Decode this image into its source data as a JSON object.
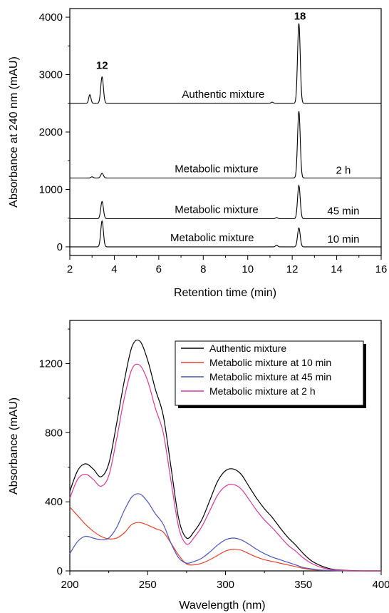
{
  "chart_data": [
    {
      "type": "line",
      "subtype": "stacked chromatogram",
      "xlabel": "Retention time (min)",
      "ylabel": "Absorbance at 240 nm (mAU)",
      "xlim": [
        2,
        16
      ],
      "ylim": [
        -150,
        4150
      ],
      "xticks": [
        2,
        4,
        6,
        8,
        10,
        12,
        14,
        16
      ],
      "yticks": [
        0,
        1000,
        2000,
        3000,
        4000
      ],
      "peak_labels": [
        {
          "text": "12",
          "x": 3.45,
          "y": 3100
        },
        {
          "text": "18",
          "x": 12.35,
          "y": 3960
        }
      ],
      "series": [
        {
          "name": "Authentic mixture",
          "time_label": "",
          "baseline": 2500,
          "label_x": 8.9,
          "peaks": [
            {
              "x": 2.9,
              "h": 150,
              "w": 0.05
            },
            {
              "x": 3.45,
              "h": 460,
              "w": 0.06
            },
            {
              "x": 11.1,
              "h": 20,
              "w": 0.05
            },
            {
              "x": 12.3,
              "h": 1390,
              "w": 0.06
            }
          ]
        },
        {
          "name": "Metabolic mixture",
          "time_label": "2 h",
          "baseline": 1200,
          "label_x": 8.6,
          "peaks": [
            {
              "x": 3.0,
              "h": 20,
              "w": 0.05
            },
            {
              "x": 3.45,
              "h": 80,
              "w": 0.06
            },
            {
              "x": 12.3,
              "h": 1160,
              "w": 0.06
            }
          ]
        },
        {
          "name": "Metabolic mixture",
          "time_label": "45 min",
          "baseline": 490,
          "label_x": 8.6,
          "peaks": [
            {
              "x": 3.45,
              "h": 300,
              "w": 0.06
            },
            {
              "x": 11.3,
              "h": 20,
              "w": 0.05
            },
            {
              "x": 12.3,
              "h": 580,
              "w": 0.06
            }
          ]
        },
        {
          "name": "Metabolic mixture",
          "time_label": "10 min",
          "baseline": 0,
          "label_x": 8.4,
          "peaks": [
            {
              "x": 3.45,
              "h": 450,
              "w": 0.06
            },
            {
              "x": 11.3,
              "h": 30,
              "w": 0.05
            },
            {
              "x": 12.3,
              "h": 330,
              "w": 0.06
            }
          ]
        }
      ]
    },
    {
      "type": "line",
      "xlabel": "Wavelength (nm)",
      "ylabel": "Absorbance (mAU)",
      "xlim": [
        200,
        400
      ],
      "ylim": [
        0,
        1450
      ],
      "xticks": [
        200,
        250,
        300,
        350,
        400
      ],
      "yticks": [
        0,
        400,
        800,
        1200
      ],
      "legend": "top-right",
      "series": [
        {
          "name": "Authentic mixture",
          "color": "#000000",
          "x": [
            200,
            205,
            210,
            215,
            220,
            225,
            230,
            235,
            240,
            245,
            250,
            255,
            260,
            265,
            270,
            275,
            280,
            285,
            290,
            295,
            300,
            305,
            310,
            315,
            320,
            325,
            330,
            335,
            340,
            345,
            350,
            355,
            360,
            365,
            370,
            380,
            390,
            400
          ],
          "y": [
            460,
            580,
            620,
            590,
            545,
            620,
            850,
            1100,
            1300,
            1330,
            1220,
            1050,
            900,
            600,
            300,
            190,
            230,
            300,
            410,
            520,
            580,
            590,
            560,
            490,
            420,
            360,
            310,
            250,
            195,
            150,
            100,
            60,
            35,
            18,
            8,
            2,
            0,
            0
          ]
        },
        {
          "name": "Metabolic mixture at 10 min",
          "color": "#e8432e",
          "x": [
            200,
            205,
            210,
            215,
            220,
            225,
            230,
            235,
            240,
            245,
            250,
            255,
            260,
            265,
            270,
            275,
            280,
            285,
            290,
            295,
            300,
            305,
            310,
            315,
            320,
            325,
            330,
            335,
            340,
            345,
            350,
            355,
            360,
            370,
            380,
            390,
            400
          ],
          "y": [
            370,
            320,
            270,
            230,
            200,
            185,
            190,
            220,
            270,
            280,
            265,
            245,
            225,
            160,
            90,
            40,
            35,
            45,
            65,
            90,
            115,
            125,
            120,
            100,
            80,
            65,
            55,
            45,
            35,
            25,
            15,
            8,
            4,
            2,
            0,
            0,
            0
          ]
        },
        {
          "name": "Metabolic mixture at 45 min",
          "color": "#4a55b8",
          "x": [
            200,
            205,
            210,
            215,
            220,
            225,
            230,
            235,
            240,
            245,
            250,
            255,
            260,
            265,
            270,
            275,
            280,
            285,
            290,
            295,
            300,
            305,
            310,
            315,
            320,
            325,
            330,
            335,
            340,
            345,
            350,
            355,
            360,
            370,
            380,
            390,
            400
          ],
          "y": [
            100,
            170,
            200,
            190,
            180,
            190,
            250,
            350,
            430,
            445,
            400,
            330,
            270,
            160,
            75,
            45,
            55,
            75,
            110,
            150,
            180,
            190,
            180,
            155,
            125,
            100,
            80,
            65,
            50,
            35,
            20,
            12,
            6,
            2,
            0,
            0,
            0
          ]
        },
        {
          "name": "Metabolic mixture at 2 h",
          "color": "#d43a9a",
          "x": [
            200,
            205,
            210,
            215,
            220,
            225,
            230,
            235,
            240,
            245,
            250,
            255,
            260,
            265,
            270,
            275,
            280,
            285,
            290,
            295,
            300,
            305,
            310,
            315,
            320,
            325,
            330,
            335,
            340,
            345,
            350,
            355,
            360,
            365,
            370,
            380,
            390,
            400
          ],
          "y": [
            420,
            530,
            560,
            530,
            490,
            550,
            760,
            1000,
            1170,
            1190,
            1100,
            940,
            800,
            520,
            250,
            155,
            195,
            260,
            350,
            440,
            490,
            500,
            475,
            415,
            350,
            295,
            250,
            200,
            150,
            115,
            75,
            45,
            25,
            12,
            6,
            1,
            0,
            0
          ]
        }
      ]
    }
  ]
}
